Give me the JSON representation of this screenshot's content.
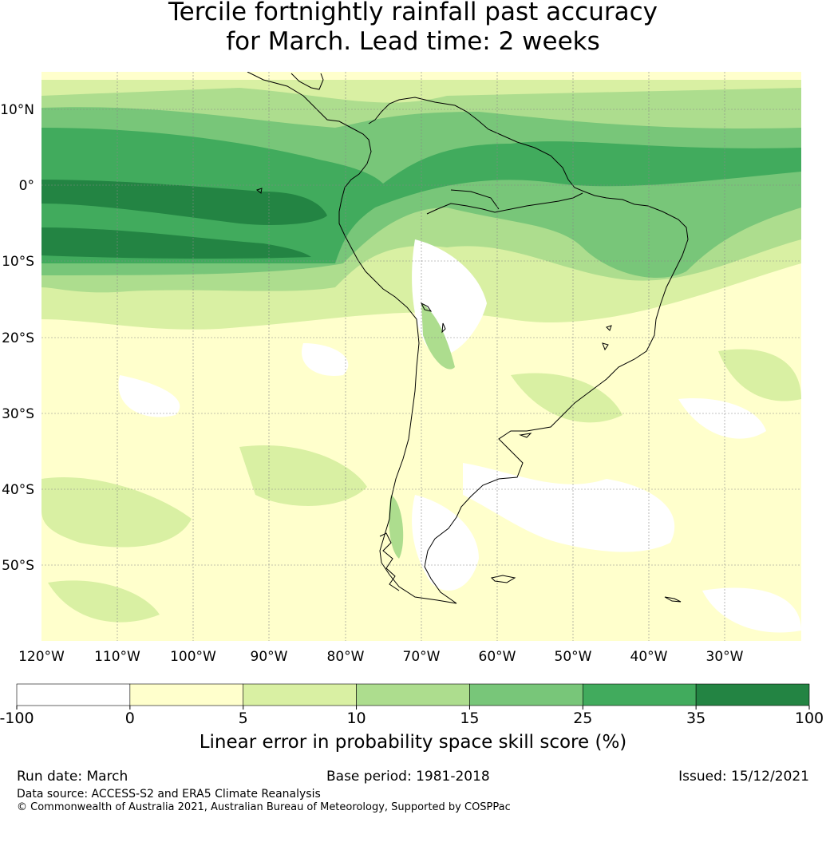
{
  "header": {
    "title_line1": "Tercile fortnightly rainfall past accuracy",
    "title_line2": "for March. Lead time: 2 weeks"
  },
  "map": {
    "region": "South America",
    "lat_labels": [
      "10°N",
      "0°",
      "10°S",
      "20°S",
      "30°S",
      "40°S",
      "50°S"
    ],
    "lon_labels": [
      "120°W",
      "110°W",
      "100°W",
      "90°W",
      "80°W",
      "70°W",
      "60°W",
      "50°W",
      "40°W",
      "30°W"
    ],
    "gridlines": true,
    "coastline_color": "#000000"
  },
  "colorbar": {
    "bins": [
      {
        "from": -100,
        "to": 0,
        "color": "#ffffff"
      },
      {
        "from": 0,
        "to": 5,
        "color": "#ffffcc"
      },
      {
        "from": 5,
        "to": 10,
        "color": "#d9f0a3"
      },
      {
        "from": 10,
        "to": 15,
        "color": "#addd8e"
      },
      {
        "from": 15,
        "to": 25,
        "color": "#78c679"
      },
      {
        "from": 25,
        "to": 35,
        "color": "#41ab5d"
      },
      {
        "from": 35,
        "to": 100,
        "color": "#238443"
      }
    ],
    "tick_labels": [
      "-100",
      "0",
      "5",
      "10",
      "15",
      "25",
      "35",
      "100"
    ],
    "label": "Linear error in probability space skill score (%)"
  },
  "footer": {
    "run_date": "Run date: March",
    "base_period": "Base period: 1981-2018",
    "issued": "Issued: 15/12/2021",
    "data_source": "Data source: ACCESS-S2 and ERA5 Climate Reanalysis",
    "copyright": "© Commonwealth of Australia 2021, Australian Bureau of Meteorology, Supported by COSPPac"
  }
}
